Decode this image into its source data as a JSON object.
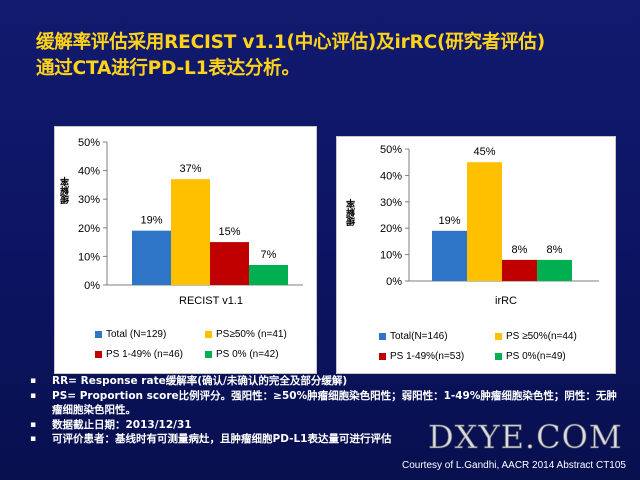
{
  "slide": {
    "title_line1": "缓解率评估采用RECIST v1.1(中心评估)及irRC(研究者评估)",
    "title_line2": "通过CTA进行PD-L1表达分析。",
    "notes": [
      "RR= Response rate缓解率(确认/未确认的完全及部分缓解)",
      "PS= Proportion score比例评分。强阳性：≥50%肿瘤细胞染色阳性；弱阳性：1-49%肿瘤细胞染色性；阴性：无肿瘤细胞染色阳性。",
      "数据截止日期：2013/12/31",
      "可评价患者：基线时有可测量病灶，且肿瘤细胞PD-L1表达量可进行评估"
    ],
    "credit": "Courtesy of L.Gandhi, AACR 2014 Abstract CT105",
    "watermark": "DXYE.COM"
  },
  "chart_data": [
    {
      "type": "bar",
      "title": "",
      "ylabel": "缓解率",
      "xlabel": "RECIST v1.1",
      "ylim": [
        0,
        50
      ],
      "yticks": [
        "0%",
        "10%",
        "20%",
        "30%",
        "40%",
        "50%"
      ],
      "grid": false,
      "legend_position": "bottom",
      "series": [
        {
          "name": "Total (N=129)",
          "value": 19,
          "label": "19%",
          "color": "#2e75c8"
        },
        {
          "name": "PS≥50% (n=41)",
          "value": 37,
          "label": "37%",
          "color": "#ffc000"
        },
        {
          "name": "PS 1-49% (n=46)",
          "value": 15,
          "label": "15%",
          "color": "#c00000"
        },
        {
          "name": "PS 0% (n=42)",
          "value": 7,
          "label": "7%",
          "color": "#00b050"
        }
      ]
    },
    {
      "type": "bar",
      "title": "",
      "ylabel": "缓解率",
      "xlabel": "irRC",
      "ylim": [
        0,
        50
      ],
      "yticks": [
        "0%",
        "10%",
        "20%",
        "30%",
        "40%",
        "50%"
      ],
      "grid": false,
      "legend_position": "bottom",
      "series": [
        {
          "name": "Total(N=146)",
          "value": 19,
          "label": "19%",
          "color": "#2e75c8"
        },
        {
          "name": "PS ≥50%(n=44)",
          "value": 45,
          "label": "45%",
          "color": "#ffc000"
        },
        {
          "name": "PS 1-49%(n=53)",
          "value": 8,
          "label": "8%",
          "color": "#c00000"
        },
        {
          "name": "PS 0%(n=49)",
          "value": 8,
          "label": "8%",
          "color": "#00b050"
        }
      ]
    }
  ]
}
